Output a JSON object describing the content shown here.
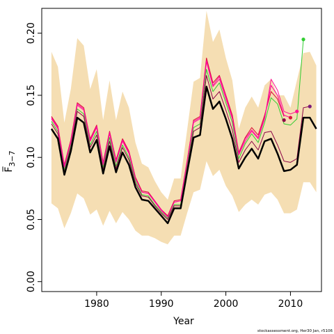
{
  "chart_data": {
    "type": "line",
    "xlabel": "Year",
    "ylabel": "F̅",
    "ylabel_sub": "3−7",
    "credit": "stockassessment.org, Her30 Jan, r5106",
    "xlim": [
      1971.5,
      2014.8
    ],
    "ylim": [
      -0.008,
      0.22
    ],
    "x_ticks": [
      1980,
      1990,
      2000,
      2010
    ],
    "y_ticks": [
      0.0,
      0.05,
      0.1,
      0.15,
      0.2
    ],
    "x_tick_labels": [
      "1980",
      "1990",
      "2000",
      "2010"
    ],
    "y_tick_labels": [
      "0.00",
      "0.05",
      "0.10",
      "0.15",
      "0.20"
    ],
    "band": {
      "color": "#f5deb3",
      "x": [
        1973,
        1974,
        1975,
        1976,
        1977,
        1978,
        1979,
        1980,
        1981,
        1982,
        1983,
        1984,
        1985,
        1986,
        1987,
        1988,
        1989,
        1990,
        1991,
        1992,
        1993,
        1994,
        1995,
        1996,
        1997,
        1998,
        1999,
        2000,
        2001,
        2002,
        2003,
        2004,
        2005,
        2006,
        2007,
        2008,
        2009,
        2010,
        2011,
        2012,
        2013,
        2014
      ],
      "upper": [
        0.185,
        0.173,
        0.128,
        0.155,
        0.196,
        0.19,
        0.155,
        0.171,
        0.13,
        0.162,
        0.13,
        0.153,
        0.14,
        0.112,
        0.095,
        0.092,
        0.081,
        0.072,
        0.066,
        0.083,
        0.083,
        0.122,
        0.161,
        0.164,
        0.218,
        0.193,
        0.203,
        0.18,
        0.162,
        0.123,
        0.14,
        0.149,
        0.14,
        0.158,
        0.163,
        0.15,
        0.15,
        0.14,
        0.162,
        0.184,
        0.185,
        0.174
      ],
      "lower": [
        0.063,
        0.059,
        0.043,
        0.055,
        0.071,
        0.067,
        0.054,
        0.058,
        0.045,
        0.057,
        0.047,
        0.056,
        0.05,
        0.041,
        0.037,
        0.037,
        0.035,
        0.032,
        0.03,
        0.037,
        0.037,
        0.055,
        0.072,
        0.074,
        0.097,
        0.085,
        0.09,
        0.077,
        0.069,
        0.056,
        0.062,
        0.066,
        0.062,
        0.07,
        0.072,
        0.066,
        0.055,
        0.055,
        0.058,
        0.08,
        0.08,
        0.072
      ]
    },
    "series": [
      {
        "color": "#000000",
        "width": 2.5,
        "x": [
          1973,
          1974,
          1975,
          1976,
          1977,
          1978,
          1979,
          1980,
          1981,
          1982,
          1983,
          1984,
          1985,
          1986,
          1987,
          1988,
          1989,
          1990,
          1991,
          1992,
          1993,
          1994,
          1995,
          1996,
          1997,
          1998,
          1999,
          2000,
          2001,
          2002,
          2003,
          2004,
          2005,
          2006,
          2007,
          2008,
          2009,
          2010,
          2011,
          2012,
          2013,
          2014
        ],
        "y": [
          0.123,
          0.115,
          0.086,
          0.105,
          0.132,
          0.128,
          0.104,
          0.114,
          0.087,
          0.109,
          0.088,
          0.104,
          0.094,
          0.076,
          0.066,
          0.065,
          0.059,
          0.053,
          0.047,
          0.059,
          0.059,
          0.088,
          0.116,
          0.118,
          0.157,
          0.139,
          0.145,
          0.131,
          0.115,
          0.091,
          0.1,
          0.107,
          0.099,
          0.113,
          0.115,
          0.103,
          0.089,
          0.09,
          0.094,
          0.132,
          0.132,
          0.123
        ]
      },
      {
        "color": "#dc143c",
        "width": 1.1,
        "x": [
          1973,
          1974,
          1975,
          1976,
          1977,
          1978,
          1979,
          1980,
          1981,
          1982,
          1983,
          1984,
          1985,
          1986,
          1987,
          1988,
          1989,
          1990,
          1991,
          1992,
          1993,
          1994,
          1995,
          1996,
          1997,
          1998,
          1999,
          2000,
          2001,
          2002,
          2003,
          2004,
          2005,
          2006,
          2007,
          2008,
          2009
        ],
        "y": [
          0.133,
          0.125,
          0.094,
          0.114,
          0.144,
          0.14,
          0.115,
          0.126,
          0.096,
          0.121,
          0.098,
          0.115,
          0.105,
          0.084,
          0.073,
          0.072,
          0.065,
          0.058,
          0.053,
          0.065,
          0.066,
          0.097,
          0.13,
          0.133,
          0.18,
          0.16,
          0.166,
          0.15,
          0.134,
          0.104,
          0.116,
          0.124,
          0.118,
          0.134,
          0.153,
          0.147,
          0.133
        ]
      },
      {
        "color": "#32cd32",
        "width": 1.0,
        "x": [
          1973,
          1974,
          1975,
          1976,
          1977,
          1978,
          1979,
          1980,
          1981,
          1982,
          1983,
          1984,
          1985,
          1986,
          1987,
          1988,
          1989,
          1990,
          1991,
          1992,
          1993,
          1994,
          1995,
          1996,
          1997,
          1998,
          1999,
          2000,
          2001,
          2002,
          2003,
          2004,
          2005,
          2006,
          2007,
          2008,
          2009,
          2010,
          2011,
          2012
        ],
        "y": [
          0.129,
          0.121,
          0.09,
          0.11,
          0.139,
          0.135,
          0.11,
          0.121,
          0.092,
          0.116,
          0.093,
          0.11,
          0.1,
          0.081,
          0.07,
          0.069,
          0.062,
          0.056,
          0.051,
          0.062,
          0.062,
          0.093,
          0.124,
          0.127,
          0.171,
          0.153,
          0.16,
          0.144,
          0.128,
          0.099,
          0.111,
          0.119,
          0.112,
          0.128,
          0.148,
          0.143,
          0.127,
          0.126,
          0.131,
          0.195
        ]
      },
      {
        "color": "#8b0045",
        "width": 1.0,
        "x": [
          1973,
          1974,
          1975,
          1976,
          1977,
          1978,
          1979,
          1980,
          1981,
          1982,
          1983,
          1984,
          1985,
          1986,
          1987,
          1988,
          1989,
          1990,
          1991,
          1992,
          1993,
          1994,
          1995,
          1996,
          1997,
          1998,
          1999,
          2000,
          2001,
          2002,
          2003,
          2004,
          2005,
          2006,
          2007,
          2008,
          2009,
          2010,
          2011,
          2012,
          2013
        ],
        "y": [
          0.127,
          0.119,
          0.088,
          0.108,
          0.137,
          0.133,
          0.108,
          0.118,
          0.09,
          0.113,
          0.091,
          0.108,
          0.098,
          0.079,
          0.069,
          0.068,
          0.061,
          0.055,
          0.05,
          0.061,
          0.061,
          0.091,
          0.121,
          0.124,
          0.166,
          0.147,
          0.153,
          0.138,
          0.122,
          0.096,
          0.106,
          0.113,
          0.106,
          0.12,
          0.121,
          0.11,
          0.097,
          0.096,
          0.099,
          0.14,
          0.141
        ]
      },
      {
        "color": "#ff1493",
        "width": 1.0,
        "x": [
          1973,
          1974,
          1975,
          1976,
          1977,
          1978,
          1979,
          1980,
          1981,
          1982,
          1983,
          1984,
          1985,
          1986,
          1987,
          1988,
          1989,
          1990,
          1991,
          1992,
          1993,
          1994,
          1995,
          1996,
          1997,
          1998,
          1999,
          2000,
          2001,
          2002,
          2003,
          2004,
          2005,
          2006,
          2007,
          2008,
          2009,
          2010,
          2011
        ],
        "y": [
          0.131,
          0.123,
          0.092,
          0.112,
          0.142,
          0.138,
          0.113,
          0.124,
          0.094,
          0.119,
          0.096,
          0.113,
          0.103,
          0.083,
          0.072,
          0.071,
          0.064,
          0.057,
          0.052,
          0.064,
          0.065,
          0.096,
          0.128,
          0.131,
          0.177,
          0.157,
          0.163,
          0.147,
          0.131,
          0.102,
          0.113,
          0.121,
          0.115,
          0.131,
          0.163,
          0.154,
          0.137,
          0.135,
          0.137
        ]
      },
      {
        "color": "#ff00a0",
        "width": 1.0,
        "x": [
          1973,
          1974,
          1975,
          1976,
          1977,
          1978,
          1979,
          1980,
          1981,
          1982,
          1983,
          1984,
          1985,
          1986,
          1987,
          1988,
          1989,
          1990,
          1991,
          1992,
          1993,
          1994,
          1995,
          1996,
          1997,
          1998,
          1999,
          2000,
          2001,
          2002,
          2003,
          2004,
          2005,
          2006,
          2007,
          2008,
          2009,
          2010
        ],
        "y": [
          0.132,
          0.124,
          0.093,
          0.113,
          0.143,
          0.139,
          0.114,
          0.125,
          0.095,
          0.12,
          0.097,
          0.114,
          0.104,
          0.083,
          0.072,
          0.071,
          0.065,
          0.058,
          0.052,
          0.064,
          0.065,
          0.096,
          0.129,
          0.132,
          0.178,
          0.158,
          0.165,
          0.149,
          0.132,
          0.103,
          0.115,
          0.122,
          0.116,
          0.132,
          0.158,
          0.15,
          0.134,
          0.132
        ]
      }
    ],
    "endpoints": [
      {
        "x": 2009,
        "y": 0.13,
        "color": "#8b0045"
      },
      {
        "x": 2010,
        "y": 0.132,
        "color": "#dc143c"
      },
      {
        "x": 2011,
        "y": 0.137,
        "color": "#ff1493"
      },
      {
        "x": 2012,
        "y": 0.195,
        "color": "#32cd32"
      },
      {
        "x": 2013,
        "y": 0.141,
        "color": "#7a1a7a"
      }
    ]
  }
}
